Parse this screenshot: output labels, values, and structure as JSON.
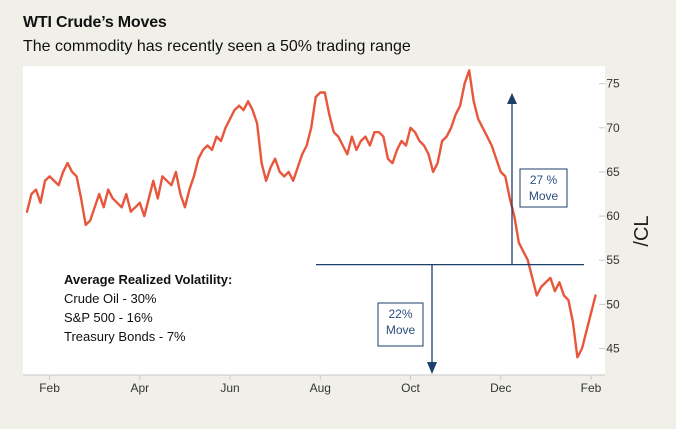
{
  "header": {
    "title": "WTI Crude’s Moves",
    "subtitle": "The commodity has recently seen a 50% trading range"
  },
  "volatility": {
    "heading": "Average Realized Volatility:",
    "items": [
      "Crude Oil - 30%",
      "S&P 500 - 16%",
      "Treasury Bonds - 7%"
    ]
  },
  "annotations": {
    "up_move": [
      "27 %",
      "Move"
    ],
    "down_move": [
      "22%",
      "Move"
    ],
    "reference_level": 54.5
  },
  "colors": {
    "line": "#e8563b",
    "arrows": "#1e3f6b",
    "annotation_text": "#2b4e7d"
  },
  "chart_data": {
    "type": "line",
    "title": "WTI Crude’s Moves",
    "subtitle": "The commodity has recently seen a 50% trading range",
    "xlabel": "",
    "ylabel": "/CL",
    "y_axis_side": "right",
    "ylim": [
      42,
      77
    ],
    "yticks": [
      45,
      50,
      55,
      60,
      65,
      70,
      75
    ],
    "x_tick_labels": [
      "Feb",
      "Apr",
      "Jun",
      "Aug",
      "Oct",
      "Dec",
      "Feb"
    ],
    "x_tick_positions": [
      0.5,
      2.5,
      4.5,
      6.5,
      8.5,
      10.5,
      12.5
    ],
    "xlim": [
      0,
      12.7
    ],
    "grid": false,
    "series": [
      {
        "x": [
          0,
          0.1,
          0.2,
          0.3,
          0.4,
          0.5,
          0.6,
          0.7,
          0.8,
          0.9,
          1.0,
          1.1,
          1.2,
          1.3,
          1.4,
          1.5,
          1.6,
          1.7,
          1.8,
          1.9,
          2.0,
          2.1,
          2.2,
          2.3,
          2.4,
          2.5,
          2.6,
          2.7,
          2.8,
          2.9,
          3.0,
          3.1,
          3.2,
          3.3,
          3.4,
          3.5,
          3.6,
          3.7,
          3.8,
          3.9,
          4.0,
          4.1,
          4.2,
          4.3,
          4.4,
          4.5,
          4.6,
          4.7,
          4.8,
          4.9,
          5.0,
          5.1,
          5.2,
          5.3,
          5.4,
          5.5,
          5.6,
          5.7,
          5.8,
          5.9,
          6.0,
          6.1,
          6.2,
          6.3,
          6.4,
          6.5,
          6.6,
          6.7,
          6.8,
          6.9,
          7.0,
          7.1,
          7.2,
          7.3,
          7.4,
          7.5,
          7.6,
          7.7,
          7.8,
          7.9,
          8.0,
          8.1,
          8.2,
          8.3,
          8.4,
          8.5,
          8.6,
          8.7,
          8.8,
          8.9,
          9.0,
          9.1,
          9.2,
          9.3,
          9.4,
          9.5,
          9.6,
          9.7,
          9.8,
          9.9,
          10.0,
          10.1,
          10.2,
          10.3,
          10.4,
          10.5,
          10.6,
          10.7,
          10.8,
          10.9,
          11.0,
          11.1,
          11.2,
          11.3,
          11.4,
          11.5,
          11.6,
          11.7,
          11.8,
          11.9,
          12.0,
          12.1,
          12.2,
          12.3,
          12.4,
          12.5,
          12.6
        ],
        "values": [
          60.5,
          62.5,
          63.0,
          61.5,
          64.0,
          64.5,
          64.0,
          63.5,
          65.0,
          66.0,
          65.0,
          64.5,
          62.0,
          59.0,
          59.5,
          61.0,
          62.5,
          61.0,
          63.0,
          62.0,
          61.5,
          61.0,
          62.5,
          60.5,
          61.0,
          61.5,
          60.0,
          62.0,
          64.0,
          62.0,
          64.5,
          64.0,
          63.5,
          65.0,
          62.5,
          61.0,
          63.0,
          64.5,
          66.5,
          67.5,
          68.0,
          67.5,
          69.0,
          68.5,
          70.0,
          71.0,
          72.0,
          72.5,
          72.0,
          73.0,
          72.0,
          70.5,
          66.0,
          64.0,
          65.5,
          66.5,
          65.0,
          64.5,
          65.0,
          64.0,
          65.5,
          67.0,
          68.0,
          70.0,
          73.5,
          74.0,
          74.0,
          71.5,
          69.5,
          69.0,
          68.0,
          67.0,
          69.0,
          67.5,
          68.5,
          69.0,
          68.0,
          69.5,
          69.5,
          69.0,
          66.5,
          66.0,
          67.5,
          68.5,
          68.0,
          70.0,
          69.5,
          68.5,
          68.0,
          67.0,
          65.0,
          66.0,
          68.5,
          69.0,
          70.0,
          71.5,
          72.5,
          75.0,
          76.5,
          73.0,
          71.0,
          70.0,
          69.0,
          68.0,
          66.5,
          65.0,
          64.5,
          62.0,
          60.0,
          57.0,
          56.0,
          55.0,
          53.0,
          51.0,
          52.0,
          52.5,
          53.0,
          51.5,
          52.5,
          51.0,
          50.5,
          48.0,
          44.0,
          45.0,
          47.0,
          49.0,
          51.0
        ]
      }
    ]
  }
}
